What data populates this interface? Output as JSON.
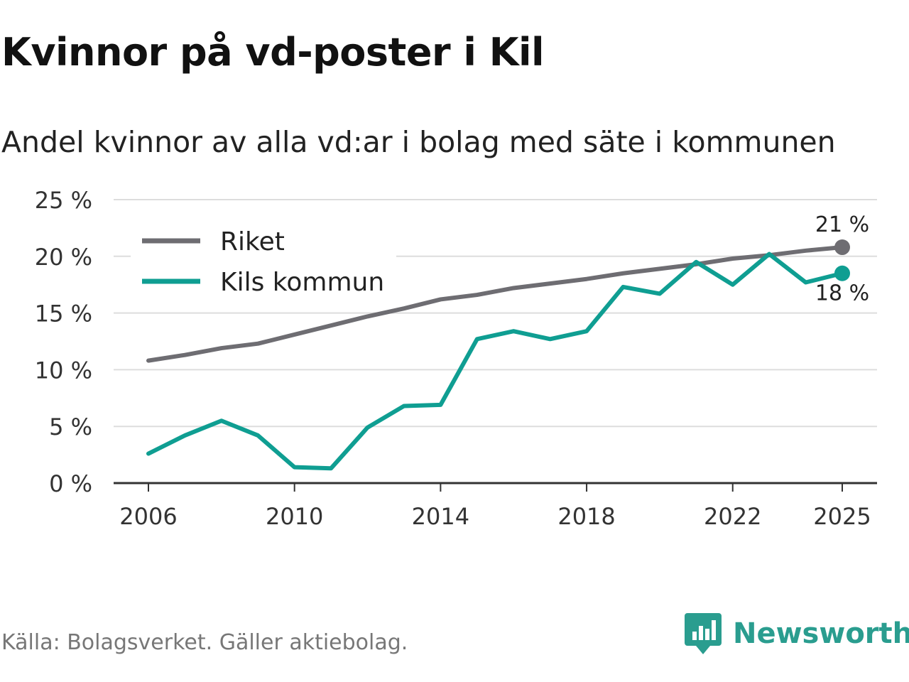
{
  "title": "Kvinnor på vd-poster i Kil",
  "subtitle": "Andel kvinnor av alla vd:ar i bolag med säte i kommunen",
  "source": "Källa: Bolagsverket. Gäller aktiebolag.",
  "brand": "Newsworthy",
  "colors": {
    "riket": "#6e6d72",
    "kil": "#0f9e92",
    "grid": "#dddddd",
    "axis": "#333333"
  },
  "chart_data": {
    "type": "line",
    "title": "Kvinnor på vd-poster i Kil",
    "subtitle": "Andel kvinnor av alla vd:ar i bolag med säte i kommunen",
    "xlabel": "",
    "ylabel": "",
    "x": [
      2006,
      2007,
      2008,
      2009,
      2010,
      2011,
      2012,
      2013,
      2014,
      2015,
      2016,
      2017,
      2018,
      2019,
      2020,
      2021,
      2022,
      2023,
      2024,
      2025
    ],
    "xticks": [
      2006,
      2010,
      2014,
      2018,
      2022,
      2025
    ],
    "xtick_labels": [
      "2006",
      "2010",
      "2014",
      "2018",
      "2022",
      "2025"
    ],
    "ylim": [
      0,
      25
    ],
    "yticks": [
      0,
      5,
      10,
      15,
      20,
      25
    ],
    "ytick_labels": [
      "0 %",
      "5 %",
      "10 %",
      "15 %",
      "20 %",
      "25 %"
    ],
    "grid": true,
    "legend_position": "top-left",
    "series": [
      {
        "name": "Riket",
        "color": "#6e6d72",
        "values": [
          10.8,
          11.3,
          11.9,
          12.3,
          13.1,
          13.9,
          14.7,
          15.4,
          16.2,
          16.6,
          17.2,
          17.6,
          18.0,
          18.5,
          18.9,
          19.3,
          19.8,
          20.1,
          20.5,
          20.8
        ],
        "end_label": "21 %"
      },
      {
        "name": "Kils kommun",
        "color": "#0f9e92",
        "values": [
          2.6,
          4.2,
          5.5,
          4.2,
          1.4,
          1.3,
          4.9,
          6.8,
          6.9,
          12.7,
          13.4,
          12.7,
          13.4,
          17.3,
          16.7,
          19.5,
          17.5,
          20.2,
          17.7,
          18.5
        ],
        "end_label": "18 %"
      }
    ]
  }
}
